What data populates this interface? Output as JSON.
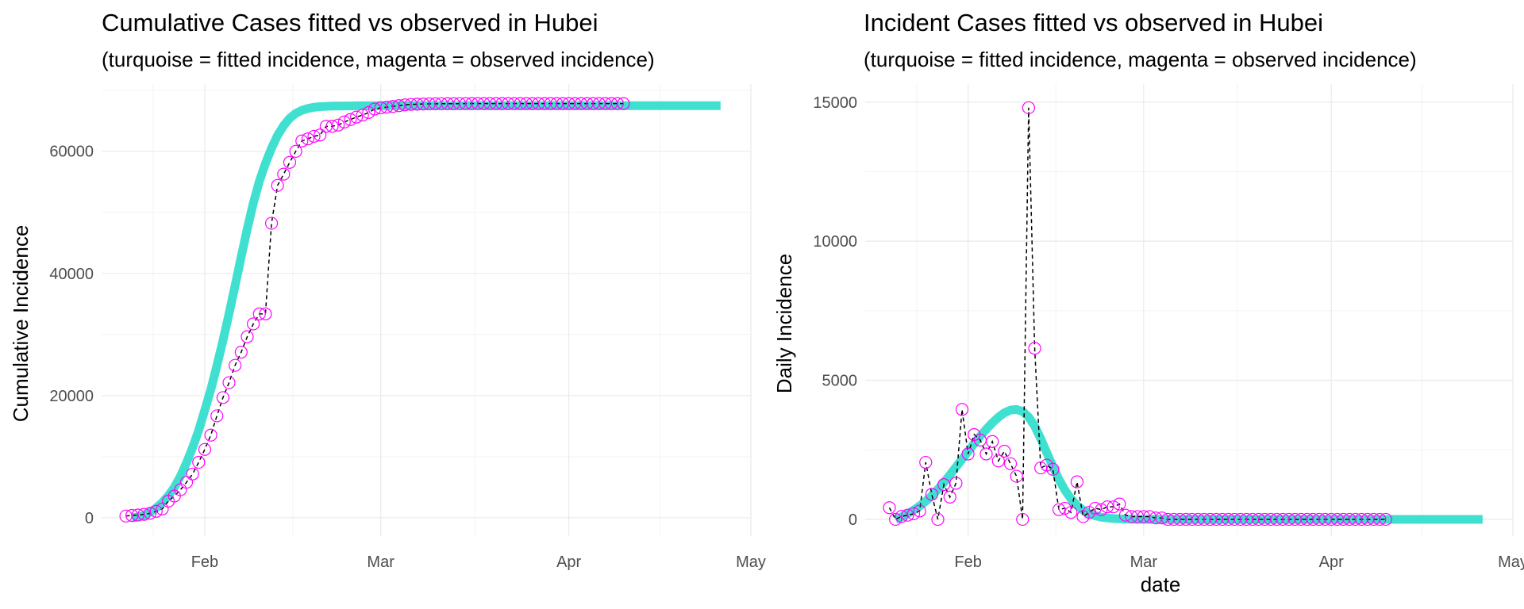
{
  "chart_data": [
    {
      "type": "line",
      "title": "Cumulative Cases fitted vs observed in Hubei",
      "subtitle": "(turquoise = fitted incidence, magenta = observed incidence)",
      "xlabel": "",
      "ylabel": "Cumulative Incidence",
      "x_type": "date",
      "xlim": [
        "2020-01-15",
        "2020-05-01"
      ],
      "ylim": [
        -3000,
        71000
      ],
      "x_ticks": [
        {
          "date": "2020-02-01",
          "label": "Feb"
        },
        {
          "date": "2020-03-01",
          "label": "Mar"
        },
        {
          "date": "2020-04-01",
          "label": "Apr"
        },
        {
          "date": "2020-05-01",
          "label": "May"
        }
      ],
      "y_ticks": [
        {
          "value": 0,
          "label": "0"
        },
        {
          "value": 20000,
          "label": "20000"
        },
        {
          "value": 40000,
          "label": "40000"
        },
        {
          "value": 60000,
          "label": "60000"
        }
      ],
      "grid": true,
      "colors": {
        "fitted": "#40e0d0",
        "observed": "#ff00ff",
        "connector": "#000000"
      },
      "series": [
        {
          "style": "fitted-thick-line",
          "x_start": "2020-01-20",
          "x_end": "2020-04-26",
          "values": [
            0,
            100,
            400,
            900,
            1600,
            2500,
            3600,
            5000,
            6800,
            9000,
            11500,
            14300,
            17600,
            21000,
            24900,
            29000,
            33400,
            38000,
            42700,
            47300,
            51500,
            55100,
            58000,
            60500,
            62600,
            64200,
            65400,
            66200,
            66700,
            67000,
            67200,
            67300,
            67350,
            67400,
            67400,
            67420,
            67420,
            67440,
            67440,
            67450,
            67450,
            67460,
            67460,
            67460,
            67460,
            67460,
            67460,
            67460,
            67460,
            67460,
            67460,
            67460,
            67460,
            67460,
            67460,
            67460,
            67460,
            67460,
            67460,
            67460,
            67460,
            67460,
            67460,
            67460,
            67460,
            67460,
            67460,
            67460,
            67460,
            67460,
            67460,
            67460,
            67460,
            67460,
            67460,
            67460,
            67460,
            67460,
            67460,
            67460,
            67460,
            67460,
            67460,
            67460,
            67460,
            67460,
            67460,
            67460,
            67460,
            67460,
            67460,
            67460,
            67460,
            67460,
            67460,
            67460,
            67460,
            67460
          ]
        },
        {
          "style": "observed-open-circles-dashed",
          "x_start": "2020-01-19",
          "values": [
            270,
            375,
            444,
            549,
            729,
            1052,
            1423,
            2714,
            3554,
            4586,
            5806,
            7153,
            9074,
            11177,
            13522,
            16678,
            19665,
            22112,
            24953,
            27100,
            29631,
            31728,
            33366,
            33366,
            48206,
            54406,
            56249,
            58182,
            59989,
            61682,
            62031,
            62442,
            62662,
            64084,
            64084,
            64287,
            64786,
            65187,
            65596,
            65914,
            66337,
            66907,
            67103,
            67217,
            67332,
            67466,
            67592,
            67666,
            67707,
            67743,
            67760,
            67773,
            67781,
            67786,
            67790,
            67794,
            67798,
            67799,
            67800,
            67800,
            67800,
            67801,
            67801,
            67801,
            67801,
            67801,
            67801,
            67801,
            67802,
            67802,
            67802,
            67802,
            67802,
            67802,
            67802,
            67802,
            67803,
            67803,
            67803,
            67803,
            67803,
            67803,
            67803
          ]
        }
      ]
    },
    {
      "type": "line",
      "title": "Incident Cases fitted vs observed in Hubei",
      "subtitle": "(turquoise = fitted incidence, magenta = observed incidence)",
      "xlabel": "date",
      "ylabel": "Daily Incidence",
      "x_type": "date",
      "xlim": [
        "2020-01-15",
        "2020-05-01"
      ],
      "ylim": [
        -600,
        15650
      ],
      "x_ticks": [
        {
          "date": "2020-02-01",
          "label": "Feb"
        },
        {
          "date": "2020-03-01",
          "label": "Mar"
        },
        {
          "date": "2020-04-01",
          "label": "Apr"
        },
        {
          "date": "2020-05-01",
          "label": "May"
        }
      ],
      "y_ticks": [
        {
          "value": 0,
          "label": "0"
        },
        {
          "value": 5000,
          "label": "5000"
        },
        {
          "value": 10000,
          "label": "10000"
        },
        {
          "value": 15000,
          "label": "15000"
        }
      ],
      "grid": true,
      "colors": {
        "fitted": "#40e0d0",
        "observed": "#ff00ff",
        "connector": "#000000"
      },
      "series": [
        {
          "style": "fitted-thick-line",
          "x_start": "2020-01-20",
          "x_end": "2020-04-26",
          "values": [
            0,
            90,
            200,
            330,
            480,
            650,
            850,
            1080,
            1330,
            1600,
            1880,
            2160,
            2440,
            2720,
            2990,
            3240,
            3470,
            3670,
            3830,
            3930,
            3950,
            3880,
            3680,
            3350,
            2900,
            2400,
            1900,
            1440,
            1050,
            740,
            500,
            330,
            210,
            130,
            80,
            50,
            30,
            20,
            10,
            5,
            0,
            0,
            0,
            0,
            0,
            0,
            0,
            0,
            0,
            0,
            0,
            0,
            0,
            0,
            0,
            0,
            0,
            0,
            0,
            0,
            0,
            0,
            0,
            0,
            0,
            0,
            0,
            0,
            0,
            0,
            0,
            0,
            0,
            0,
            0,
            0,
            0,
            0,
            0,
            0,
            0,
            0,
            0,
            0,
            0,
            0,
            0,
            0,
            0,
            0,
            0,
            0,
            0,
            0,
            0,
            0,
            0,
            0
          ]
        },
        {
          "style": "observed-open-circles-dashed",
          "x_start": "2020-01-19",
          "values": [
            420,
            0,
            105,
            150,
            200,
            300,
            2050,
            900,
            0,
            1250,
            800,
            1300,
            3950,
            2350,
            3050,
            2850,
            2350,
            2800,
            2100,
            2450,
            2000,
            1550,
            0,
            14800,
            6150,
            1850,
            1950,
            1800,
            350,
            400,
            250,
            1350,
            100,
            250,
            400,
            350,
            450,
            450,
            550,
            150,
            100,
            100,
            100,
            100,
            50,
            50,
            0,
            0,
            0,
            0,
            0,
            0,
            0,
            0,
            0,
            0,
            0,
            0,
            0,
            0,
            0,
            0,
            0,
            0,
            0,
            0,
            0,
            0,
            0,
            0,
            0,
            0,
            0,
            0,
            0,
            0,
            0,
            0,
            0,
            0,
            0,
            0,
            0
          ]
        }
      ]
    }
  ]
}
